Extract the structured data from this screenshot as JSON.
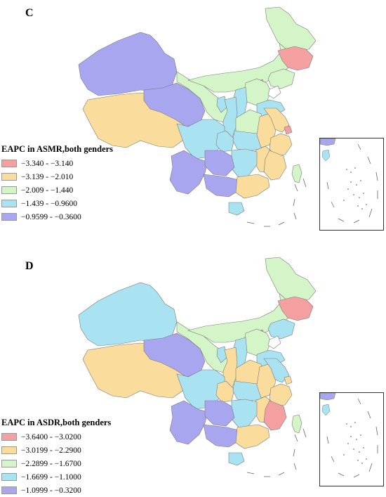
{
  "panels": [
    {
      "letter": "C",
      "legend": {
        "title": "EAPC in ASMR,both genders",
        "items": [
          {
            "label": "−3.340 - −3.140",
            "color": "#f4a0a0"
          },
          {
            "label": "−3.139 - −2.010",
            "color": "#fadc9c"
          },
          {
            "label": "−2.009 - −1.440",
            "color": "#d4f5c7"
          },
          {
            "label": "−1.439 - −0.9600",
            "color": "#a9e3f2"
          },
          {
            "label": "−0.9599 - −0.3600",
            "color": "#a9a6f0"
          }
        ]
      },
      "regions": {
        "xinjiang": 4,
        "tibet": 1,
        "qinghai": 4,
        "gansu": 2,
        "inner_mongolia": 2,
        "heilongjiang": 2,
        "jilin": 0,
        "liaoning": 2,
        "beijing": 0,
        "tianjin": 3,
        "hebei": 2,
        "shanxi": 3,
        "shandong": 3,
        "ningxia": 3,
        "shaanxi": 3,
        "henan": 2,
        "sichuan": 3,
        "chongqing": 3,
        "hubei": 3,
        "anhui": 1,
        "jiangsu": 1,
        "shanghai": 0,
        "zhejiang": 1,
        "jiangxi": 1,
        "hunan": 3,
        "yunnan": 4,
        "guizhou": 4,
        "guangxi": 4,
        "guangdong": 1,
        "fujian": 1,
        "hainan": 3,
        "taiwan": 2
      },
      "inset": {
        "taiwan": 3,
        "corner": 4
      }
    },
    {
      "letter": "D",
      "legend": {
        "title": "EAPC in ASDR,both genders",
        "items": [
          {
            "label": "−3.6400 - −3.0200",
            "color": "#f4a0a0"
          },
          {
            "label": "−3.0199 - −2.2900",
            "color": "#fadc9c"
          },
          {
            "label": "−2.2899 - −1.6700",
            "color": "#d4f5c7"
          },
          {
            "label": "−1.6699 - −1.1000",
            "color": "#a9e3f2"
          },
          {
            "label": "−1.0999 - −0.3200",
            "color": "#a9a6f0"
          }
        ]
      },
      "regions": {
        "xinjiang": 3,
        "tibet": 1,
        "qinghai": 4,
        "gansu": 2,
        "inner_mongolia": 2,
        "heilongjiang": 2,
        "jilin": 0,
        "liaoning": 3,
        "beijing": 0,
        "tianjin": 3,
        "hebei": 2,
        "shanxi": 3,
        "shandong": 3,
        "ningxia": 3,
        "shaanxi": 1,
        "henan": 1,
        "sichuan": 3,
        "chongqing": 1,
        "hubei": 3,
        "anhui": 1,
        "jiangsu": 3,
        "shanghai": 1,
        "zhejiang": 1,
        "jiangxi": 1,
        "hunan": 3,
        "yunnan": 4,
        "guizhou": 4,
        "guangxi": 4,
        "guangdong": 1,
        "fujian": 0,
        "hainan": 3,
        "taiwan": 2
      },
      "inset": {
        "taiwan": 3,
        "corner": 4
      }
    }
  ]
}
